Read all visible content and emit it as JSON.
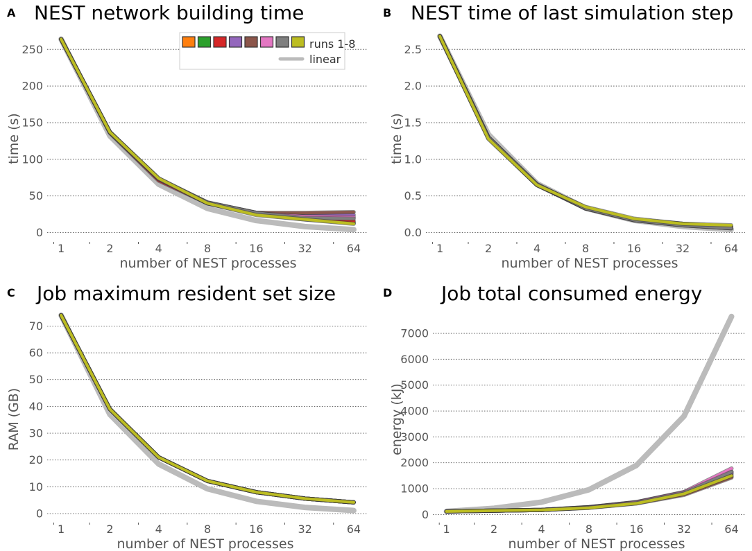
{
  "figure": {
    "run_colors": [
      "#ff7f0e",
      "#2ca02c",
      "#d62728",
      "#9467bd",
      "#8c564b",
      "#e377c2",
      "#7f7f7f",
      "#bcbd22"
    ],
    "linear_color": "#bbbbbb"
  },
  "legend": {
    "runs_label": "runs 1-8",
    "linear_label": "linear"
  },
  "chart_data": [
    {
      "type": "line",
      "letter": "A",
      "title": "NEST network building time",
      "xlabel": "number of NEST processes",
      "ylabel": "time (s)",
      "x": [
        1,
        2,
        4,
        8,
        16,
        32,
        64
      ],
      "x_scale": "log2",
      "xlim": [
        0.82,
        78
      ],
      "ylim": [
        -7,
        272
      ],
      "yticks": [
        0,
        50,
        100,
        150,
        200,
        250
      ],
      "ytick_labels": [
        "0",
        "50",
        "100",
        "150",
        "200",
        "250"
      ],
      "grid": "horizontal",
      "series": [
        {
          "name": "run 1",
          "values": [
            264,
            137,
            73,
            40,
            26,
            19,
            14
          ]
        },
        {
          "name": "run 2",
          "values": [
            264,
            137,
            73,
            40,
            25,
            18,
            13
          ]
        },
        {
          "name": "run 3",
          "values": [
            264,
            136,
            71,
            40,
            27,
            20,
            16
          ]
        },
        {
          "name": "run 4",
          "values": [
            264,
            137,
            73,
            41,
            27,
            24,
            24
          ]
        },
        {
          "name": "run 5",
          "values": [
            264,
            137,
            73,
            41,
            27,
            27,
            28
          ]
        },
        {
          "name": "run 6",
          "values": [
            264,
            137,
            73,
            40,
            26,
            22,
            21
          ]
        },
        {
          "name": "run 7",
          "values": [
            264,
            137,
            74,
            41,
            27,
            20,
            19
          ]
        },
        {
          "name": "run 8",
          "values": [
            264,
            137,
            74,
            40,
            24,
            18,
            12
          ]
        }
      ],
      "linear": [
        264,
        132,
        66,
        33,
        16.5,
        8.25,
        4.1
      ]
    },
    {
      "type": "line",
      "letter": "B",
      "title": "NEST time of last simulation step",
      "xlabel": "number of NEST processes",
      "ylabel": "time (s)",
      "x": [
        1,
        2,
        4,
        8,
        16,
        32,
        64
      ],
      "x_scale": "log2",
      "xlim": [
        0.82,
        78
      ],
      "ylim": [
        -0.07,
        2.72
      ],
      "yticks": [
        0.0,
        0.5,
        1.0,
        1.5,
        2.0,
        2.5
      ],
      "ytick_labels": [
        "0.0",
        "0.5",
        "1.0",
        "1.5",
        "2.0",
        "2.5"
      ],
      "grid": "horizontal",
      "series": [
        {
          "name": "run 1",
          "values": [
            2.68,
            1.29,
            0.65,
            0.34,
            0.18,
            0.12,
            0.08
          ]
        },
        {
          "name": "run 2",
          "values": [
            2.68,
            1.29,
            0.65,
            0.34,
            0.18,
            0.12,
            0.08
          ]
        },
        {
          "name": "run 3",
          "values": [
            2.68,
            1.3,
            0.66,
            0.33,
            0.17,
            0.11,
            0.07
          ]
        },
        {
          "name": "run 4",
          "values": [
            2.68,
            1.3,
            0.65,
            0.33,
            0.17,
            0.1,
            0.06
          ]
        },
        {
          "name": "run 5",
          "values": [
            2.68,
            1.3,
            0.65,
            0.33,
            0.17,
            0.1,
            0.06
          ]
        },
        {
          "name": "run 6",
          "values": [
            2.68,
            1.29,
            0.65,
            0.34,
            0.18,
            0.11,
            0.07
          ]
        },
        {
          "name": "run 7",
          "values": [
            2.68,
            1.3,
            0.66,
            0.33,
            0.17,
            0.1,
            0.06
          ]
        },
        {
          "name": "run 8",
          "values": [
            2.68,
            1.28,
            0.65,
            0.35,
            0.19,
            0.12,
            0.1
          ]
        }
      ],
      "linear": [
        2.68,
        1.34,
        0.67,
        0.335,
        0.167,
        0.084,
        0.042
      ]
    },
    {
      "type": "line",
      "letter": "C",
      "title": "Job maximum resident set size",
      "xlabel": "number of NEST processes",
      "ylabel": "RAM (GB)",
      "x": [
        1,
        2,
        4,
        8,
        16,
        32,
        64
      ],
      "x_scale": "log2",
      "xlim": [
        0.82,
        78
      ],
      "ylim": [
        -1.8,
        74.5
      ],
      "yticks": [
        0,
        10,
        20,
        30,
        40,
        50,
        60,
        70
      ],
      "ytick_labels": [
        "0",
        "10",
        "20",
        "30",
        "40",
        "50",
        "60",
        "70"
      ],
      "grid": "horizontal",
      "series": [
        {
          "name": "run 1",
          "values": [
            74,
            39,
            21,
            12.2,
            8,
            5.6,
            4.2
          ]
        },
        {
          "name": "run 2",
          "values": [
            74,
            39,
            21,
            12.2,
            8,
            5.6,
            4.2
          ]
        },
        {
          "name": "run 3",
          "values": [
            74,
            39,
            21,
            12.2,
            8,
            5.6,
            4.2
          ]
        },
        {
          "name": "run 4",
          "values": [
            74,
            39,
            21,
            12.2,
            8,
            5.6,
            4.2
          ]
        },
        {
          "name": "run 5",
          "values": [
            74,
            39,
            21,
            12.2,
            8,
            5.6,
            4.2
          ]
        },
        {
          "name": "run 6",
          "values": [
            74,
            39,
            21,
            12.2,
            8,
            5.6,
            4.2
          ]
        },
        {
          "name": "run 7",
          "values": [
            74,
            39,
            21,
            12.2,
            8,
            5.6,
            4.2
          ]
        },
        {
          "name": "run 8",
          "values": [
            74,
            39,
            21,
            12.2,
            8,
            5.6,
            4.2
          ]
        }
      ],
      "linear": [
        74,
        37,
        18.5,
        9.25,
        4.6,
        2.3,
        1.15
      ]
    },
    {
      "type": "line",
      "letter": "D",
      "title": "Job total consumed energy",
      "xlabel": "number of NEST processes",
      "ylabel": "energy (kJ)",
      "x": [
        1,
        2,
        4,
        8,
        16,
        32,
        64
      ],
      "x_scale": "log2",
      "xlim": [
        0.82,
        78
      ],
      "ylim": [
        -150,
        7750
      ],
      "yticks": [
        0,
        1000,
        2000,
        3000,
        4000,
        5000,
        6000,
        7000
      ],
      "ytick_labels": [
        "0",
        "1000",
        "2000",
        "3000",
        "4000",
        "5000",
        "6000",
        "7000"
      ],
      "grid": "horizontal",
      "series": [
        {
          "name": "run 1",
          "values": [
            120,
            150,
            180,
            290,
            470,
            850,
            1560
          ]
        },
        {
          "name": "run 2",
          "values": [
            120,
            150,
            180,
            270,
            450,
            820,
            1470
          ]
        },
        {
          "name": "run 3",
          "values": [
            120,
            150,
            180,
            280,
            480,
            860,
            1650
          ]
        },
        {
          "name": "run 4",
          "values": [
            120,
            150,
            180,
            270,
            460,
            830,
            1600
          ]
        },
        {
          "name": "run 5",
          "values": [
            120,
            150,
            180,
            270,
            430,
            760,
            1430
          ]
        },
        {
          "name": "run 6",
          "values": [
            120,
            150,
            180,
            280,
            480,
            870,
            1780
          ]
        },
        {
          "name": "run 7",
          "values": [
            120,
            150,
            180,
            270,
            460,
            840,
            1650
          ]
        },
        {
          "name": "run 8",
          "values": [
            120,
            150,
            180,
            260,
            430,
            800,
            1500
          ]
        }
      ],
      "linear": [
        120,
        240,
        480,
        960,
        1900,
        3800,
        7650
      ]
    }
  ]
}
